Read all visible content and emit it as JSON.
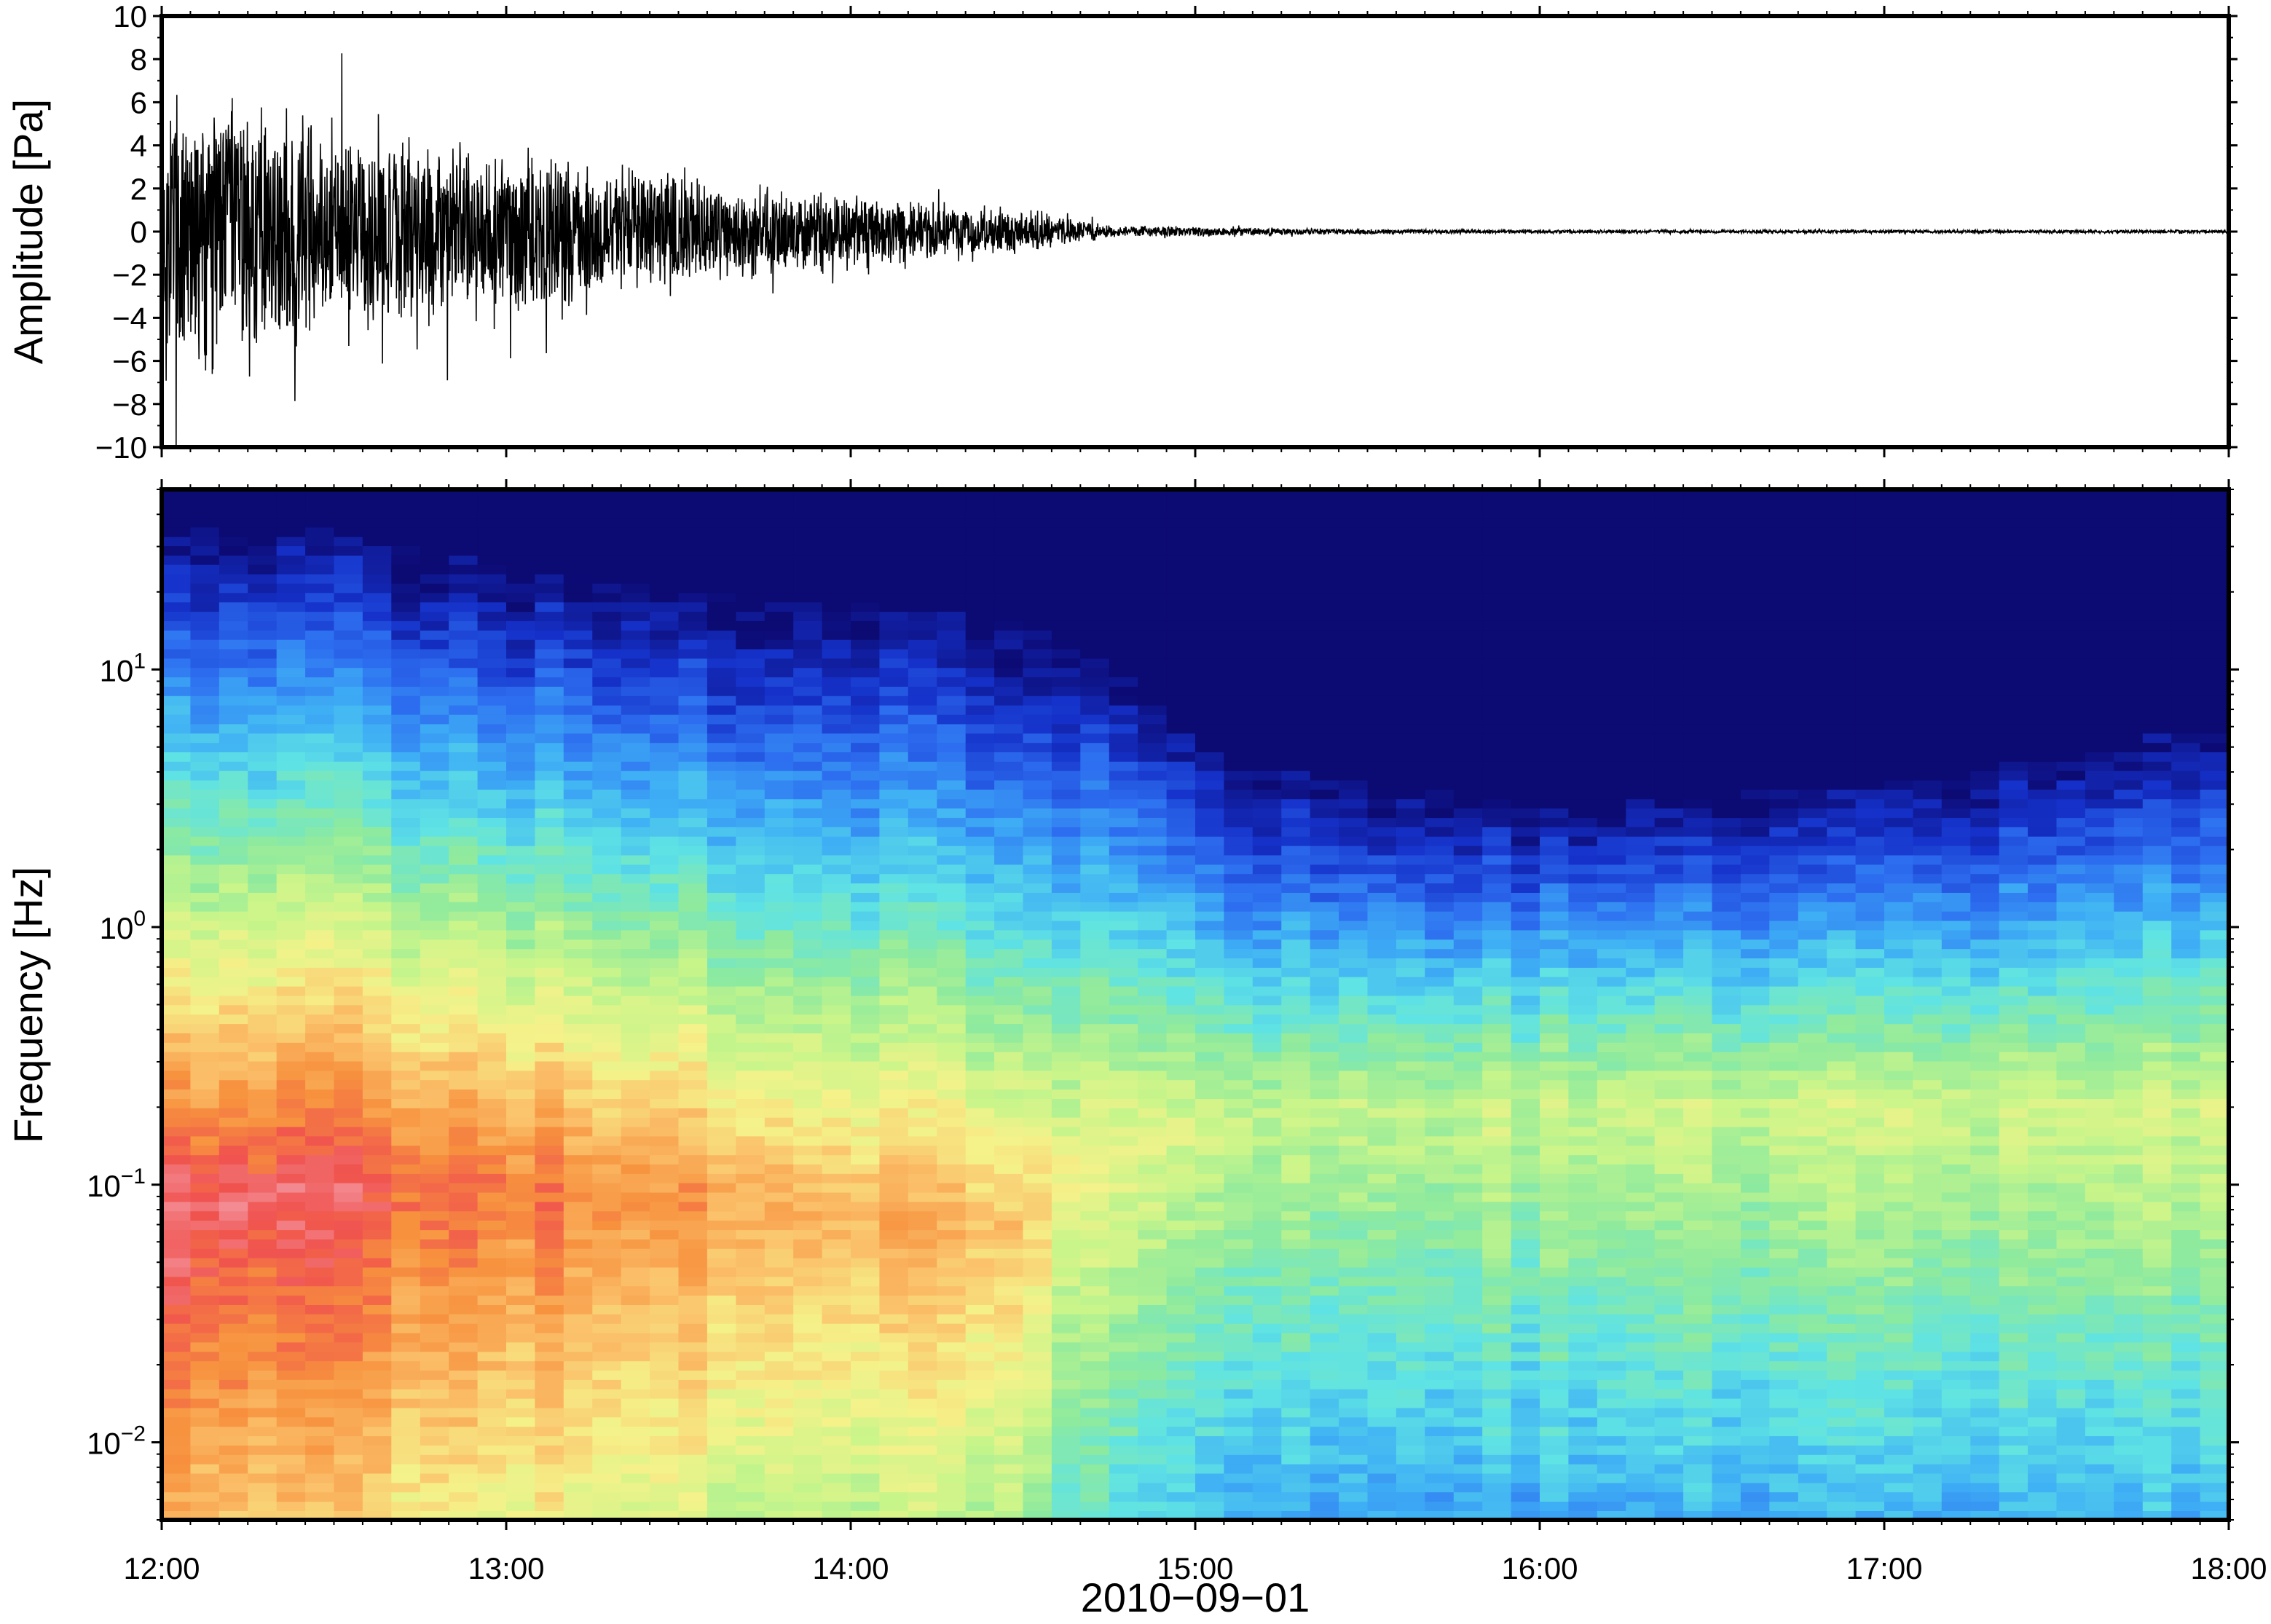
{
  "chart_data": [
    {
      "type": "line",
      "ylabel": "Amplitude [Pa]",
      "ylim": [
        -10,
        10
      ],
      "yticks": [
        "10",
        "8",
        "6",
        "4",
        "2",
        "0",
        "−2",
        "−4",
        "−6",
        "−8",
        "−10"
      ],
      "ytick_values": [
        10,
        8,
        6,
        4,
        2,
        0,
        -2,
        -4,
        -6,
        -8,
        -10
      ],
      "xlim": [
        "12:00",
        "18:00"
      ],
      "grid": false,
      "series": [
        {
          "color": "#000000",
          "x_hours": [
            12.0,
            12.5,
            13.0,
            13.5,
            14.0,
            14.5,
            14.75,
            15.0,
            15.5,
            16.0,
            17.0,
            18.0
          ],
          "envelope": [
            8.0,
            5.0,
            4.2,
            2.8,
            1.8,
            1.1,
            0.3,
            0.25,
            0.12,
            0.08,
            0.08,
            0.08
          ]
        }
      ]
    },
    {
      "type": "heatmap",
      "title": "",
      "xlabel": "2010−09−01",
      "ylabel": "Frequency [Hz]",
      "yscale": "log",
      "ylim": [
        0.005,
        50
      ],
      "ytick_values": [
        0.01,
        0.1,
        1,
        10
      ],
      "yticks": [
        {
          "base": "10",
          "exp": "−2"
        },
        {
          "base": "10",
          "exp": "−1"
        },
        {
          "base": "10",
          "exp": "0"
        },
        {
          "base": "10",
          "exp": "1"
        }
      ],
      "xticks": [
        "12:00",
        "13:00",
        "14:00",
        "15:00",
        "16:00",
        "17:00",
        "18:00"
      ],
      "xtick_hours": [
        12,
        13,
        14,
        15,
        16,
        17,
        18
      ],
      "colormap": [
        "#0c0a73",
        "#1531c9",
        "#2d6ef0",
        "#3fb0f5",
        "#5fe3e4",
        "#8eea9e",
        "#c9f58a",
        "#f5f28a",
        "#fbc06a",
        "#f7913e",
        "#f0524e",
        "#f49aa5"
      ],
      "spectral_power_model": {
        "time_hours": [
          12.0,
          12.5,
          13.0,
          13.5,
          14.0,
          14.5,
          14.65,
          15.0,
          15.5,
          16.0,
          17.0,
          18.0
        ],
        "peak_level": [
          0.98,
          0.92,
          0.86,
          0.8,
          0.76,
          0.74,
          0.62,
          0.56,
          0.55,
          0.55,
          0.56,
          0.58
        ],
        "peak_frequency_hz": [
          0.08,
          0.1,
          0.1,
          0.09,
          0.08,
          0.07,
          0.12,
          0.18,
          0.2,
          0.2,
          0.2,
          0.2
        ],
        "high_frequency_cutoff_hz": [
          40,
          35,
          25,
          20,
          18,
          15,
          12,
          5,
          3.5,
          3,
          3.5,
          6
        ]
      }
    }
  ]
}
